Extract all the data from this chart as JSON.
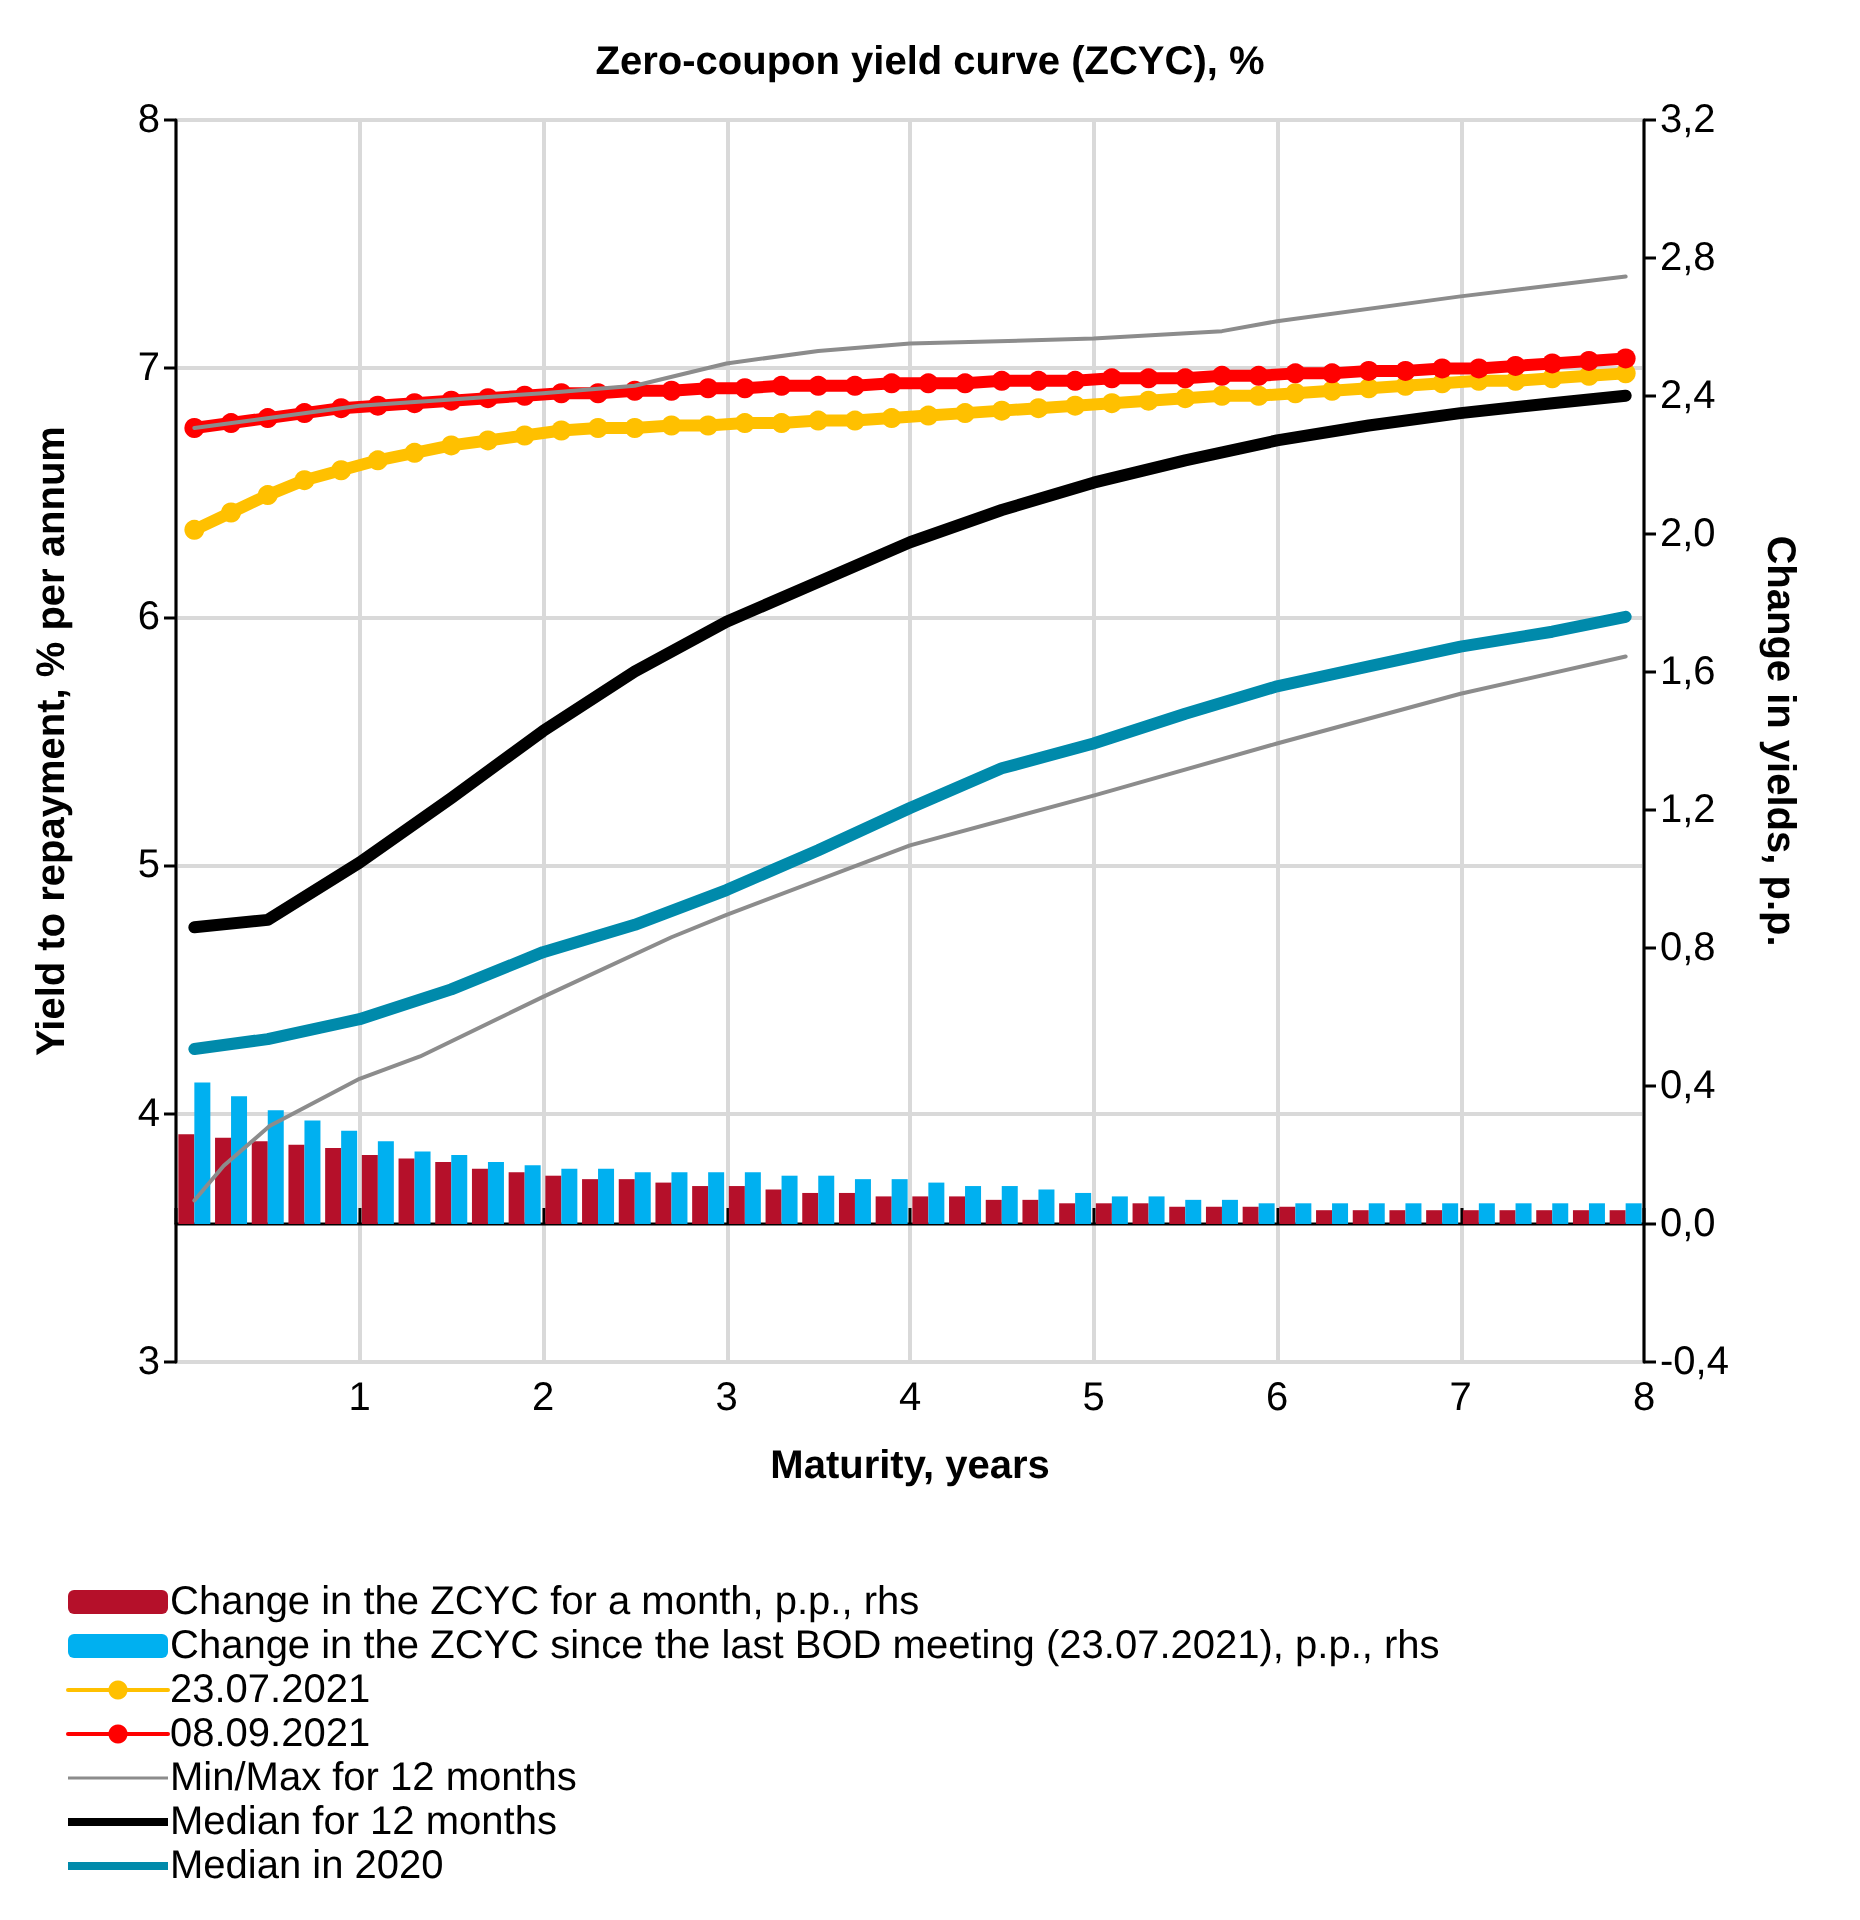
{
  "chart_data": {
    "type": "line",
    "title": "Zero-coupon yield curve (ZCYC), %",
    "xlabel": "Maturity, years",
    "ylabel": "Yield to repayment, % per annum",
    "y2label": "Change in yields, p.p.",
    "xlim": [
      0,
      8
    ],
    "xticks": [
      {
        "value": 0,
        "label": null
      },
      1,
      2,
      3,
      4,
      5,
      6,
      7,
      8
    ],
    "ylim": [
      3,
      8
    ],
    "yticks": [
      3,
      4,
      5,
      6,
      7,
      8
    ],
    "y2lim": [
      -0.4,
      3.2
    ],
    "y2ticks": [
      {
        "value": -0.4,
        "label": "-0,4"
      },
      {
        "value": 0,
        "label": "0,0"
      },
      {
        "value": 0.4,
        "label": "0,4"
      },
      {
        "value": 0.8,
        "label": "0,8"
      },
      {
        "value": 1.2,
        "label": "1,2"
      },
      {
        "value": 1.6,
        "label": "1,6"
      },
      {
        "value": 2.0,
        "label": "2,0"
      },
      {
        "value": 2.4,
        "label": "2,4"
      },
      {
        "value": 2.8,
        "label": "2,8"
      },
      {
        "value": 3.2,
        "label": "3,2"
      }
    ],
    "grid": true,
    "legend": "bottom",
    "marker": "none",
    "line_style": "solid",
    "series": [
      {
        "type": "bar",
        "axis": "y2",
        "name": "Change in the ZCYC for a month, p.p., rhs",
        "color": "#b5102a",
        "x": [
          0.1,
          0.3,
          0.5,
          0.7,
          0.9,
          1.1,
          1.3,
          1.5,
          1.7,
          1.9,
          2.1,
          2.3,
          2.5,
          2.7,
          2.9,
          3.1,
          3.3,
          3.5,
          3.7,
          3.9,
          4.1,
          4.3,
          4.5,
          4.7,
          4.9,
          5.1,
          5.3,
          5.5,
          5.7,
          5.9,
          6.1,
          6.3,
          6.5,
          6.7,
          6.9,
          7.1,
          7.3,
          7.5,
          7.7,
          7.9
        ],
        "values": [
          0.26,
          0.25,
          0.24,
          0.23,
          0.22,
          0.2,
          0.19,
          0.18,
          0.16,
          0.15,
          0.14,
          0.13,
          0.13,
          0.12,
          0.11,
          0.11,
          0.1,
          0.09,
          0.09,
          0.08,
          0.08,
          0.08,
          0.07,
          0.07,
          0.06,
          0.06,
          0.06,
          0.05,
          0.05,
          0.05,
          0.05,
          0.04,
          0.04,
          0.04,
          0.04,
          0.04,
          0.04,
          0.04,
          0.04,
          0.04
        ]
      },
      {
        "type": "bar",
        "axis": "y2",
        "name": "Change in the ZCYC since the last BOD meeting (23.07.2021), p.p., rhs",
        "color": "#00b0f0",
        "x": [
          0.1,
          0.3,
          0.5,
          0.7,
          0.9,
          1.1,
          1.3,
          1.5,
          1.7,
          1.9,
          2.1,
          2.3,
          2.5,
          2.7,
          2.9,
          3.1,
          3.3,
          3.5,
          3.7,
          3.9,
          4.1,
          4.3,
          4.5,
          4.7,
          4.9,
          5.1,
          5.3,
          5.5,
          5.7,
          5.9,
          6.1,
          6.3,
          6.5,
          6.7,
          6.9,
          7.1,
          7.3,
          7.5,
          7.7,
          7.9
        ],
        "values": [
          0.41,
          0.37,
          0.33,
          0.3,
          0.27,
          0.24,
          0.21,
          0.2,
          0.18,
          0.17,
          0.16,
          0.16,
          0.15,
          0.15,
          0.15,
          0.15,
          0.14,
          0.14,
          0.13,
          0.13,
          0.12,
          0.11,
          0.11,
          0.1,
          0.09,
          0.08,
          0.08,
          0.07,
          0.07,
          0.06,
          0.06,
          0.06,
          0.06,
          0.06,
          0.06,
          0.06,
          0.06,
          0.06,
          0.06,
          0.06
        ]
      },
      {
        "name": "23.07.2021",
        "color": "#ffc000",
        "marker": "circle",
        "x": [
          0.1,
          0.3,
          0.5,
          0.7,
          0.9,
          1.1,
          1.3,
          1.5,
          1.7,
          1.9,
          2.1,
          2.3,
          2.5,
          2.7,
          2.9,
          3.1,
          3.3,
          3.5,
          3.7,
          3.9,
          4.1,
          4.3,
          4.5,
          4.7,
          4.9,
          5.1,
          5.3,
          5.5,
          5.7,
          5.9,
          6.1,
          6.3,
          6.5,
          6.7,
          6.9,
          7.1,
          7.3,
          7.5,
          7.7,
          7.9
        ],
        "values": [
          6.35,
          6.42,
          6.49,
          6.55,
          6.59,
          6.63,
          6.66,
          6.69,
          6.71,
          6.73,
          6.75,
          6.76,
          6.76,
          6.77,
          6.77,
          6.78,
          6.78,
          6.79,
          6.79,
          6.8,
          6.81,
          6.82,
          6.83,
          6.84,
          6.85,
          6.86,
          6.87,
          6.88,
          6.89,
          6.89,
          6.9,
          6.91,
          6.92,
          6.93,
          6.94,
          6.95,
          6.95,
          6.96,
          6.97,
          6.98
        ]
      },
      {
        "name": "08.09.2021",
        "color": "#ff0000",
        "marker": "circle",
        "x": [
          0.1,
          0.3,
          0.5,
          0.7,
          0.9,
          1.1,
          1.3,
          1.5,
          1.7,
          1.9,
          2.1,
          2.3,
          2.5,
          2.7,
          2.9,
          3.1,
          3.3,
          3.5,
          3.7,
          3.9,
          4.1,
          4.3,
          4.5,
          4.7,
          4.9,
          5.1,
          5.3,
          5.5,
          5.7,
          5.9,
          6.1,
          6.3,
          6.5,
          6.7,
          6.9,
          7.1,
          7.3,
          7.5,
          7.7,
          7.9
        ],
        "values": [
          6.76,
          6.78,
          6.8,
          6.82,
          6.84,
          6.85,
          6.86,
          6.87,
          6.88,
          6.89,
          6.9,
          6.9,
          6.91,
          6.91,
          6.92,
          6.92,
          6.93,
          6.93,
          6.93,
          6.94,
          6.94,
          6.94,
          6.95,
          6.95,
          6.95,
          6.96,
          6.96,
          6.96,
          6.97,
          6.97,
          6.98,
          6.98,
          6.99,
          6.99,
          7.0,
          7.0,
          7.01,
          7.02,
          7.03,
          7.04
        ]
      },
      {
        "name": "Min/Max for 12 months",
        "color": "#8c8c8c",
        "x": [
          0.1,
          1,
          2,
          2.5,
          3,
          3.5,
          4,
          5,
          5.7,
          6,
          7,
          7.9
        ],
        "values": [
          6.76,
          6.85,
          6.9,
          6.93,
          7.02,
          7.07,
          7.1,
          7.12,
          7.15,
          7.19,
          7.29,
          7.37
        ]
      },
      {
        "color": "#8c8c8c",
        "x": [
          0.1,
          0.26,
          0.51,
          1,
          1.33,
          2,
          2.7,
          3,
          4,
          5,
          6,
          7,
          7.9
        ],
        "values": [
          3.65,
          3.79,
          3.95,
          4.14,
          4.23,
          4.47,
          4.71,
          4.8,
          5.08,
          5.28,
          5.49,
          5.69,
          5.84
        ]
      },
      {
        "name": "Median for 12 months",
        "color": "#000000",
        "x": [
          0.1,
          0.5,
          1,
          1.5,
          2,
          2.5,
          3,
          3.5,
          4,
          4.5,
          5,
          5.5,
          6,
          6.5,
          7,
          7.5,
          7.9
        ],
        "values": [
          4.75,
          4.78,
          5.01,
          5.27,
          5.54,
          5.78,
          5.98,
          6.14,
          6.3,
          6.43,
          6.54,
          6.63,
          6.71,
          6.77,
          6.82,
          6.86,
          6.89
        ]
      },
      {
        "name": "Median in 2020",
        "color": "#008aab",
        "x": [
          0.1,
          0.5,
          1,
          1.5,
          2,
          2.5,
          3,
          3.5,
          4,
          4.5,
          5,
          5.5,
          6,
          6.5,
          7,
          7.5,
          7.9
        ],
        "values": [
          4.26,
          4.3,
          4.38,
          4.5,
          4.65,
          4.76,
          4.9,
          5.06,
          5.23,
          5.39,
          5.49,
          5.61,
          5.72,
          5.8,
          5.88,
          5.94,
          6.0
        ]
      }
    ]
  }
}
